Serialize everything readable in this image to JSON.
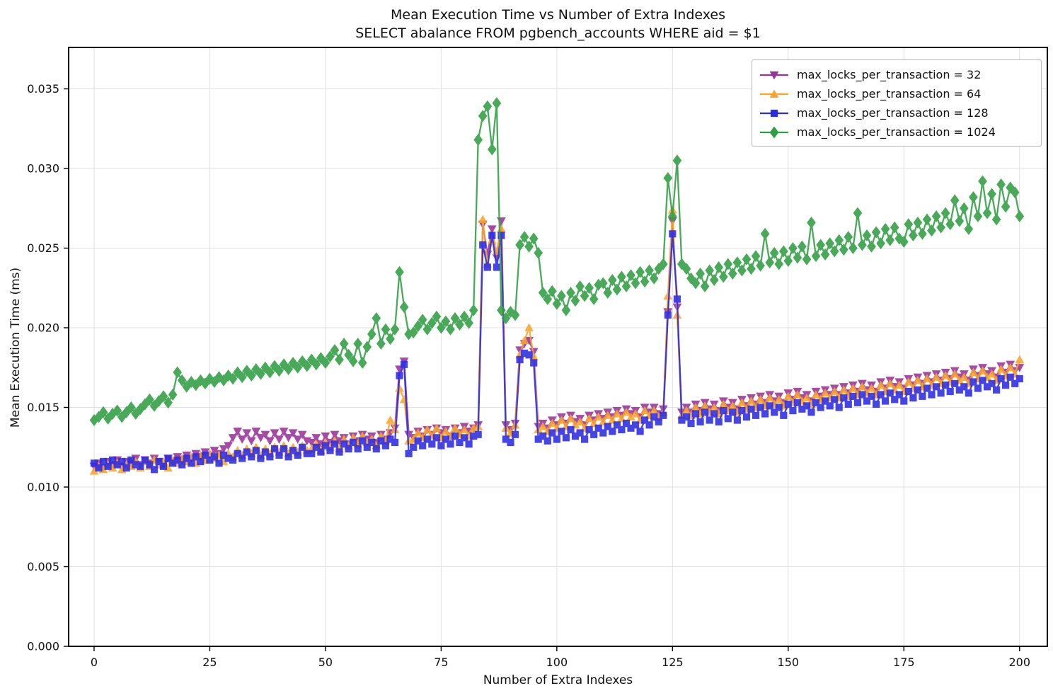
{
  "title": {
    "line1": "Mean Execution Time vs Number of Extra Indexes",
    "line2": "SELECT abalance FROM pgbench_accounts WHERE aid = $1"
  },
  "axes": {
    "xlabel": "Number of Extra Indexes",
    "ylabel": "Mean Execution Time (ms)",
    "x_ticks": [
      0,
      25,
      50,
      75,
      100,
      125,
      150,
      175,
      200
    ],
    "y_ticks": [
      0.0,
      0.005,
      0.01,
      0.015,
      0.02,
      0.025,
      0.03,
      0.035
    ],
    "xlim": [
      -5.5,
      206
    ],
    "ylim": [
      0,
      0.0376
    ],
    "grid": true,
    "grid_color": "#e0e0e0",
    "spine_color": "#000000"
  },
  "legend": {
    "position": "upper right",
    "items": [
      {
        "label": "max_locks_per_transaction = 32",
        "color": "#993399",
        "marker": "triangle-down"
      },
      {
        "label": "max_locks_per_transaction = 64",
        "color": "#fba42c",
        "marker": "triangle-up"
      },
      {
        "label": "max_locks_per_transaction = 128",
        "color": "#2b2be4",
        "marker": "square"
      },
      {
        "label": "max_locks_per_transaction = 1024",
        "color": "#2f9e41",
        "marker": "diamond"
      }
    ]
  },
  "chart_data": {
    "type": "line",
    "title": "Mean Execution Time vs Number of Extra Indexes",
    "subtitle": "SELECT abalance FROM pgbench_accounts WHERE aid = $1",
    "xlabel": "Number of Extra Indexes",
    "ylabel": "Mean Execution Time (ms)",
    "x_start": 0,
    "x_step": 1,
    "xlim": [
      -5.5,
      206
    ],
    "ylim": [
      0,
      0.0376
    ],
    "legend_position": "upper right",
    "series": [
      {
        "name": "max_locks_per_transaction = 32",
        "color": "#993399",
        "marker": "triangle-down",
        "values": [
          0.0113,
          0.0115,
          0.0112,
          0.0116,
          0.0114,
          0.0117,
          0.0113,
          0.0116,
          0.0115,
          0.0118,
          0.0114,
          0.0117,
          0.0115,
          0.0118,
          0.0116,
          0.0114,
          0.0118,
          0.0116,
          0.0119,
          0.0117,
          0.012,
          0.0118,
          0.0121,
          0.0119,
          0.0122,
          0.012,
          0.0123,
          0.0121,
          0.0124,
          0.0126,
          0.0131,
          0.0135,
          0.013,
          0.0134,
          0.0129,
          0.0135,
          0.0131,
          0.0133,
          0.0129,
          0.0134,
          0.013,
          0.0135,
          0.0131,
          0.0134,
          0.013,
          0.0133,
          0.0129,
          0.0128,
          0.0131,
          0.0127,
          0.0132,
          0.0128,
          0.0133,
          0.0129,
          0.0131,
          0.0127,
          0.0132,
          0.0129,
          0.0133,
          0.013,
          0.0132,
          0.0128,
          0.0133,
          0.013,
          0.0134,
          0.0137,
          0.0174,
          0.0179,
          0.0133,
          0.0131,
          0.0135,
          0.0132,
          0.0136,
          0.0133,
          0.0137,
          0.0134,
          0.0136,
          0.0132,
          0.0137,
          0.0134,
          0.0138,
          0.0135,
          0.0137,
          0.0139,
          0.0265,
          0.0246,
          0.0262,
          0.0244,
          0.0267,
          0.0139,
          0.0136,
          0.014,
          0.0186,
          0.019,
          0.0192,
          0.0185,
          0.0138,
          0.014,
          0.0137,
          0.0142,
          0.0139,
          0.0144,
          0.014,
          0.0145,
          0.0141,
          0.0143,
          0.0139,
          0.0145,
          0.0142,
          0.0146,
          0.0143,
          0.0147,
          0.0144,
          0.0148,
          0.0145,
          0.0149,
          0.0146,
          0.0148,
          0.0144,
          0.015,
          0.0147,
          0.015,
          0.0146,
          0.0149,
          0.021,
          0.0267,
          0.0213,
          0.0147,
          0.015,
          0.0147,
          0.0152,
          0.0148,
          0.0153,
          0.0149,
          0.0152,
          0.0148,
          0.0154,
          0.015,
          0.0153,
          0.0149,
          0.0155,
          0.0151,
          0.0156,
          0.0152,
          0.0157,
          0.0153,
          0.0158,
          0.0154,
          0.0157,
          0.0153,
          0.0159,
          0.0155,
          0.016,
          0.0156,
          0.0158,
          0.0154,
          0.016,
          0.0157,
          0.0161,
          0.0158,
          0.0162,
          0.0158,
          0.0163,
          0.0159,
          0.0164,
          0.016,
          0.0165,
          0.0161,
          0.0164,
          0.016,
          0.0166,
          0.0162,
          0.0167,
          0.0163,
          0.0166,
          0.0162,
          0.0168,
          0.0164,
          0.0169,
          0.0165,
          0.017,
          0.0166,
          0.0171,
          0.0167,
          0.0172,
          0.0168,
          0.0173,
          0.0169,
          0.0171,
          0.0167,
          0.0174,
          0.017,
          0.0175,
          0.0171,
          0.0173,
          0.0169,
          0.0176,
          0.0172,
          0.0177,
          0.0173,
          0.0175
        ]
      },
      {
        "name": "max_locks_per_transaction = 64",
        "color": "#fba42c",
        "marker": "triangle-up",
        "values": [
          0.011,
          0.0113,
          0.0111,
          0.0114,
          0.0112,
          0.0115,
          0.0111,
          0.0114,
          0.0113,
          0.0116,
          0.0112,
          0.0116,
          0.0113,
          0.0117,
          0.0114,
          0.0116,
          0.0112,
          0.0117,
          0.0115,
          0.0118,
          0.0116,
          0.0119,
          0.0115,
          0.012,
          0.0117,
          0.0121,
          0.0118,
          0.012,
          0.0116,
          0.0121,
          0.0119,
          0.0123,
          0.012,
          0.0124,
          0.0121,
          0.0125,
          0.012,
          0.0124,
          0.0121,
          0.0125,
          0.0122,
          0.0126,
          0.0121,
          0.0125,
          0.0122,
          0.0126,
          0.0123,
          0.0124,
          0.0127,
          0.0123,
          0.0128,
          0.0125,
          0.0129,
          0.0124,
          0.013,
          0.0126,
          0.0131,
          0.0127,
          0.0132,
          0.0128,
          0.013,
          0.0126,
          0.0132,
          0.0129,
          0.0142,
          0.0136,
          0.0162,
          0.0155,
          0.0129,
          0.013,
          0.0134,
          0.0131,
          0.0136,
          0.0132,
          0.0137,
          0.0131,
          0.0135,
          0.0132,
          0.0137,
          0.0133,
          0.0136,
          0.0132,
          0.0137,
          0.0138,
          0.0268,
          0.024,
          0.0255,
          0.0248,
          0.0262,
          0.0137,
          0.0134,
          0.0139,
          0.0183,
          0.0192,
          0.02,
          0.0182,
          0.0136,
          0.0138,
          0.0135,
          0.014,
          0.0137,
          0.0142,
          0.0138,
          0.0143,
          0.0139,
          0.0141,
          0.0137,
          0.0143,
          0.014,
          0.0144,
          0.0141,
          0.0145,
          0.0142,
          0.0146,
          0.0143,
          0.0147,
          0.0144,
          0.0146,
          0.0142,
          0.0148,
          0.0145,
          0.0148,
          0.0144,
          0.0147,
          0.022,
          0.0274,
          0.0208,
          0.0145,
          0.0148,
          0.0145,
          0.015,
          0.0146,
          0.0151,
          0.0147,
          0.015,
          0.0146,
          0.0152,
          0.0148,
          0.0151,
          0.0147,
          0.0153,
          0.0149,
          0.0154,
          0.015,
          0.0155,
          0.0151,
          0.0156,
          0.0152,
          0.0155,
          0.0151,
          0.0157,
          0.0153,
          0.0158,
          0.0154,
          0.0156,
          0.0152,
          0.0158,
          0.0155,
          0.0159,
          0.0156,
          0.016,
          0.0156,
          0.0161,
          0.0157,
          0.0162,
          0.0158,
          0.0163,
          0.0159,
          0.0162,
          0.0158,
          0.0164,
          0.016,
          0.0165,
          0.0161,
          0.0164,
          0.016,
          0.0166,
          0.0162,
          0.0167,
          0.0163,
          0.0168,
          0.0164,
          0.0169,
          0.0165,
          0.017,
          0.0166,
          0.0171,
          0.0167,
          0.0169,
          0.0165,
          0.0172,
          0.0168,
          0.0173,
          0.0169,
          0.0171,
          0.0167,
          0.0174,
          0.017,
          0.0175,
          0.0171,
          0.018
        ]
      },
      {
        "name": "max_locks_per_transaction = 128",
        "color": "#2b2be4",
        "marker": "square",
        "values": [
          0.0115,
          0.0112,
          0.0116,
          0.0113,
          0.0117,
          0.0114,
          0.0116,
          0.0112,
          0.0117,
          0.0114,
          0.0113,
          0.0117,
          0.0114,
          0.0111,
          0.0116,
          0.0113,
          0.0118,
          0.0115,
          0.0117,
          0.0114,
          0.0118,
          0.0115,
          0.0119,
          0.0116,
          0.012,
          0.0117,
          0.0119,
          0.0115,
          0.012,
          0.0118,
          0.0117,
          0.0121,
          0.0118,
          0.0122,
          0.0119,
          0.0123,
          0.0118,
          0.0122,
          0.0119,
          0.0124,
          0.012,
          0.0124,
          0.0119,
          0.0123,
          0.012,
          0.0125,
          0.0121,
          0.0121,
          0.0125,
          0.0122,
          0.0126,
          0.0123,
          0.0127,
          0.0122,
          0.0127,
          0.0124,
          0.0128,
          0.0124,
          0.0129,
          0.0125,
          0.0128,
          0.0124,
          0.0129,
          0.0126,
          0.013,
          0.0128,
          0.017,
          0.0177,
          0.0121,
          0.0125,
          0.0129,
          0.0126,
          0.013,
          0.0127,
          0.0131,
          0.0126,
          0.013,
          0.0127,
          0.0132,
          0.0128,
          0.0131,
          0.0127,
          0.0132,
          0.0133,
          0.0252,
          0.0238,
          0.0258,
          0.0238,
          0.0258,
          0.013,
          0.0128,
          0.0133,
          0.018,
          0.0184,
          0.0183,
          0.0178,
          0.013,
          0.0132,
          0.0129,
          0.0134,
          0.013,
          0.0135,
          0.0131,
          0.0136,
          0.0132,
          0.0134,
          0.013,
          0.0136,
          0.0133,
          0.0137,
          0.0134,
          0.0138,
          0.0135,
          0.0139,
          0.0136,
          0.014,
          0.0137,
          0.0139,
          0.0135,
          0.0142,
          0.0139,
          0.0144,
          0.0141,
          0.0145,
          0.0208,
          0.0259,
          0.0218,
          0.0142,
          0.0144,
          0.014,
          0.0146,
          0.0141,
          0.0147,
          0.0142,
          0.0146,
          0.0141,
          0.0148,
          0.0143,
          0.0147,
          0.0142,
          0.0148,
          0.0144,
          0.0149,
          0.0145,
          0.015,
          0.0146,
          0.0151,
          0.0147,
          0.015,
          0.0145,
          0.0152,
          0.0148,
          0.0153,
          0.0149,
          0.0151,
          0.0147,
          0.0153,
          0.015,
          0.0154,
          0.0151,
          0.0155,
          0.015,
          0.0156,
          0.0152,
          0.0157,
          0.0153,
          0.0158,
          0.0154,
          0.0157,
          0.0152,
          0.0158,
          0.0154,
          0.0159,
          0.0155,
          0.0158,
          0.0154,
          0.016,
          0.0156,
          0.0161,
          0.0157,
          0.0162,
          0.0158,
          0.0163,
          0.0159,
          0.0164,
          0.016,
          0.0165,
          0.0161,
          0.0163,
          0.0159,
          0.0166,
          0.0162,
          0.0167,
          0.0163,
          0.0165,
          0.0161,
          0.0168,
          0.0164,
          0.0169,
          0.0165,
          0.0168
        ]
      },
      {
        "name": "max_locks_per_transaction = 1024",
        "color": "#2f9e41",
        "marker": "diamond",
        "values": [
          0.0142,
          0.0144,
          0.0147,
          0.0143,
          0.0146,
          0.0148,
          0.0144,
          0.0147,
          0.015,
          0.0146,
          0.0149,
          0.0152,
          0.0155,
          0.0151,
          0.0154,
          0.0157,
          0.0153,
          0.0158,
          0.0172,
          0.0167,
          0.0163,
          0.0166,
          0.0164,
          0.0167,
          0.0165,
          0.0168,
          0.0166,
          0.0169,
          0.0167,
          0.017,
          0.0168,
          0.0172,
          0.0169,
          0.0173,
          0.017,
          0.0174,
          0.0171,
          0.0175,
          0.0172,
          0.0176,
          0.0173,
          0.0177,
          0.0174,
          0.0178,
          0.0175,
          0.0179,
          0.0176,
          0.018,
          0.0177,
          0.0181,
          0.0178,
          0.0182,
          0.0186,
          0.018,
          0.019,
          0.0183,
          0.0179,
          0.019,
          0.0178,
          0.0188,
          0.0196,
          0.0206,
          0.019,
          0.0199,
          0.0193,
          0.0199,
          0.0235,
          0.0213,
          0.0196,
          0.0197,
          0.0201,
          0.0205,
          0.0199,
          0.0203,
          0.0207,
          0.02,
          0.0204,
          0.0199,
          0.0206,
          0.0202,
          0.0207,
          0.0203,
          0.0211,
          0.0318,
          0.0333,
          0.0339,
          0.0312,
          0.0341,
          0.0211,
          0.0206,
          0.021,
          0.0208,
          0.0252,
          0.0257,
          0.0251,
          0.0256,
          0.0247,
          0.0222,
          0.0218,
          0.0223,
          0.0215,
          0.022,
          0.0211,
          0.0222,
          0.0217,
          0.0226,
          0.022,
          0.0225,
          0.0218,
          0.0227,
          0.0228,
          0.0222,
          0.023,
          0.0224,
          0.0232,
          0.0226,
          0.0233,
          0.0228,
          0.0235,
          0.0229,
          0.0236,
          0.0231,
          0.0237,
          0.024,
          0.0294,
          0.027,
          0.0305,
          0.024,
          0.0237,
          0.0231,
          0.0228,
          0.0234,
          0.0226,
          0.0236,
          0.023,
          0.0238,
          0.0232,
          0.024,
          0.0234,
          0.0241,
          0.0236,
          0.0243,
          0.0237,
          0.0245,
          0.0239,
          0.0259,
          0.0241,
          0.0247,
          0.024,
          0.0248,
          0.0242,
          0.025,
          0.0244,
          0.0251,
          0.0243,
          0.0266,
          0.0245,
          0.0252,
          0.0246,
          0.0253,
          0.0248,
          0.0255,
          0.0249,
          0.0257,
          0.025,
          0.0272,
          0.0252,
          0.0258,
          0.0251,
          0.026,
          0.0253,
          0.0262,
          0.0255,
          0.0263,
          0.0256,
          0.0254,
          0.0265,
          0.0258,
          0.0266,
          0.0259,
          0.0268,
          0.0261,
          0.027,
          0.0263,
          0.0272,
          0.0265,
          0.028,
          0.0267,
          0.0275,
          0.0262,
          0.0282,
          0.027,
          0.0292,
          0.0272,
          0.0284,
          0.0268,
          0.029,
          0.0276,
          0.0288,
          0.0285,
          0.027
        ]
      }
    ]
  }
}
